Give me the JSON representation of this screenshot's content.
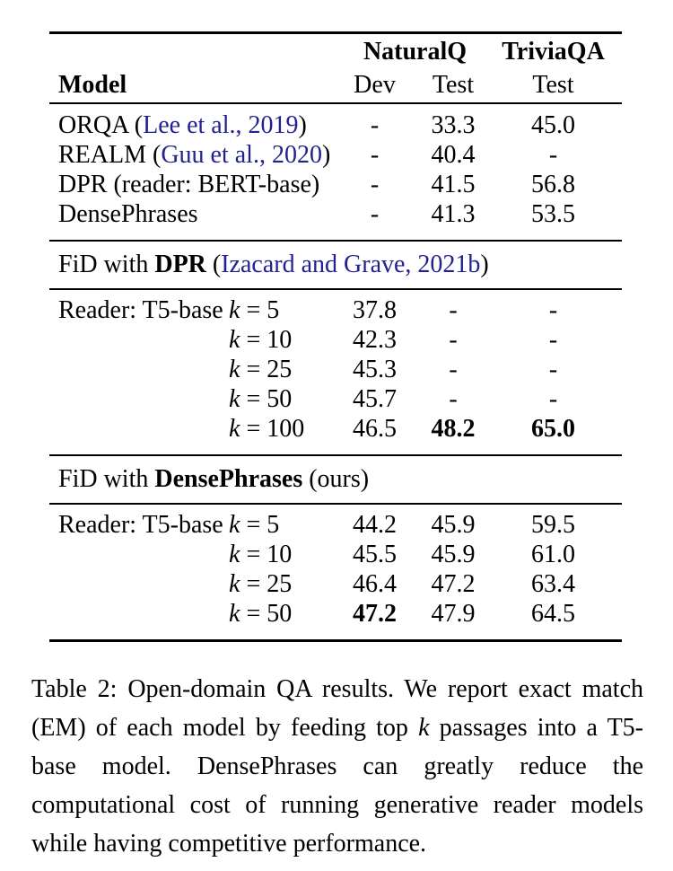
{
  "colors": {
    "background": "#ffffff",
    "text": "#000000",
    "citation_link": "#21218f",
    "rule": "#000000"
  },
  "table": {
    "header": {
      "group_nq": "NaturalQ",
      "group_tqa": "TriviaQA",
      "model": "Model",
      "dev": "Dev",
      "test_nq": "Test",
      "test_tqa": "Test"
    },
    "baseline_rows": [
      {
        "name": "ORQA (",
        "cite": "Lee et al., 2019",
        "close": ")",
        "dev": "-",
        "nq_test": "33.3",
        "tqa_test": "45.0"
      },
      {
        "name": "REALM (",
        "cite": "Guu et al., 2020",
        "close": ")",
        "dev": "-",
        "nq_test": "40.4",
        "tqa_test": "-"
      },
      {
        "name": "DPR (reader: BERT-base)",
        "cite": "",
        "close": "",
        "dev": "-",
        "nq_test": "41.5",
        "tqa_test": "56.8"
      },
      {
        "name": "DensePhrases",
        "cite": "",
        "close": "",
        "dev": "-",
        "nq_test": "41.3",
        "tqa_test": "53.5"
      }
    ],
    "section_dpr": {
      "prefix": "FiD with ",
      "bold": "DPR",
      "mid": " (",
      "cite": "Izacard and Grave, 2021b",
      "close": ")",
      "reader_label": "Reader: T5-base",
      "k_symbol": "k",
      "rows": [
        {
          "k": " = 5",
          "dev": "37.8",
          "nq_test": "-",
          "tqa_test": "-"
        },
        {
          "k": " = 10",
          "dev": "42.3",
          "nq_test": "-",
          "tqa_test": "-"
        },
        {
          "k": " = 25",
          "dev": "45.3",
          "nq_test": "-",
          "tqa_test": "-"
        },
        {
          "k": " = 50",
          "dev": "45.7",
          "nq_test": "-",
          "tqa_test": "-"
        },
        {
          "k": " = 100",
          "dev": "46.5",
          "nq_test": "48.2",
          "tqa_test": "65.0"
        }
      ]
    },
    "section_dph": {
      "prefix": "FiD with ",
      "bold": "DensePhrases",
      "mid": " (ours)",
      "reader_label": "Reader: T5-base",
      "k_symbol": "k",
      "rows": [
        {
          "k": " = 5",
          "dev": "44.2",
          "nq_test": "45.9",
          "tqa_test": "59.5"
        },
        {
          "k": " = 10",
          "dev": "45.5",
          "nq_test": "45.9",
          "tqa_test": "61.0"
        },
        {
          "k": " = 25",
          "dev": "46.4",
          "nq_test": "47.2",
          "tqa_test": "63.4"
        },
        {
          "k": " = 50",
          "dev": "47.2",
          "nq_test": "47.9",
          "tqa_test": "64.5"
        }
      ]
    }
  },
  "caption": {
    "part1": "Table 2: Open-domain QA results. We report exact match (EM) of each model by feeding top ",
    "k": "k",
    "part2": " passages into a T5-base model. DensePhrases can greatly reduce the computational cost of running generative reader models while having competitive performance."
  }
}
